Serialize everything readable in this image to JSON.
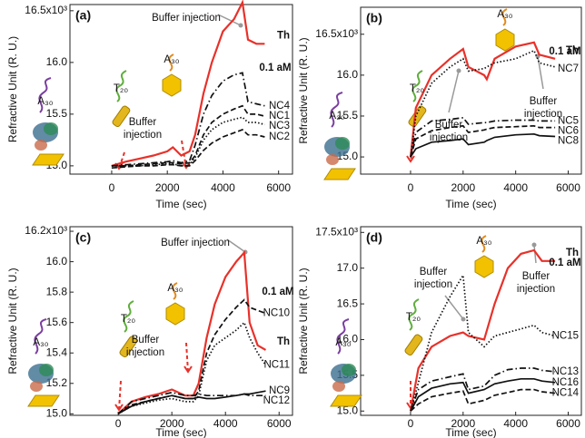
{
  "chart_data": [
    {
      "type": "line",
      "panel_label": "(a)",
      "x_label": "Time (sec)",
      "y_label": "Refractive Unit (R. U.)",
      "xlim": [
        -1500,
        6500
      ],
      "ylim": [
        14.92,
        16.56
      ],
      "xticks": [
        0,
        2000,
        4000,
        6000
      ],
      "yticks": [
        {
          "value": 15,
          "label": "15.0"
        },
        15.5,
        {
          "value": 16,
          "label": "16.0"
        },
        {
          "value": 16.5,
          "label": "16.5x10³"
        }
      ],
      "x": [
        0,
        500,
        1000,
        1500,
        2000,
        2200,
        2500,
        2800,
        3000,
        3300,
        3600,
        4000,
        4400,
        4700,
        4900,
        5200,
        5500
      ],
      "series": [
        {
          "name": "Th",
          "color": "#e8312a",
          "style": "solid",
          "values": [
            15.0,
            15.04,
            15.07,
            15.1,
            15.14,
            15.18,
            15.1,
            15.14,
            15.3,
            15.7,
            16.0,
            16.3,
            16.42,
            16.58,
            16.22,
            16.18,
            16.18
          ]
        },
        {
          "name": "NC4",
          "color": "#111111",
          "style": "dashdot",
          "values": [
            15.0,
            15.01,
            15.02,
            15.03,
            15.04,
            15.05,
            15.03,
            15.05,
            15.2,
            15.5,
            15.68,
            15.82,
            15.88,
            15.9,
            15.62,
            15.6,
            15.58
          ]
        },
        {
          "name": "NC1",
          "color": "#111111",
          "style": "dashed",
          "values": [
            15.0,
            15.0,
            15.01,
            15.02,
            15.03,
            15.03,
            15.02,
            15.03,
            15.1,
            15.3,
            15.42,
            15.5,
            15.55,
            15.58,
            15.5,
            15.5,
            15.48
          ]
        },
        {
          "name": "NC3",
          "color": "#111111",
          "style": "dotted",
          "values": [
            15.0,
            15.0,
            15.0,
            15.01,
            15.02,
            15.02,
            15.0,
            15.01,
            15.08,
            15.25,
            15.35,
            15.42,
            15.45,
            15.47,
            15.42,
            15.42,
            15.4
          ]
        },
        {
          "name": "NC2",
          "color": "#111111",
          "style": "dashed",
          "values": [
            14.98,
            14.99,
            15.0,
            15.0,
            15.01,
            15.01,
            15.0,
            15.0,
            15.05,
            15.15,
            15.22,
            15.28,
            15.32,
            15.35,
            15.3,
            15.3,
            15.28
          ]
        }
      ],
      "annotations": [
        "Buffer injection",
        [
          "Buffer",
          "injection"
        ],
        "A₃₀",
        "T₂₀",
        "A₃₀",
        "0.1 aM"
      ]
    },
    {
      "type": "line",
      "panel_label": "(b)",
      "x_label": "Time (sec)",
      "y_label": "Refractive Unit (R. U.)",
      "xlim": [
        -1900,
        6500
      ],
      "ylim": [
        14.79,
        16.83
      ],
      "xticks": [
        0,
        2000,
        4000,
        6000
      ],
      "yticks": [
        {
          "value": 15,
          "label": "15.0"
        },
        15.5,
        {
          "value": 16,
          "label": "16.0"
        },
        {
          "value": 16.5,
          "label": "16.5x10³"
        }
      ],
      "x": [
        0,
        200,
        800,
        1500,
        2000,
        2200,
        2800,
        2900,
        3200,
        4000,
        4700,
        4900,
        5500
      ],
      "series": [
        {
          "name": "Th",
          "color": "#e8312a",
          "style": "solid",
          "values": [
            15.0,
            15.6,
            16.0,
            16.2,
            16.32,
            16.1,
            16.0,
            15.95,
            16.2,
            16.35,
            16.4,
            16.25,
            16.2
          ]
        },
        {
          "name": "NC7",
          "color": "#111111",
          "style": "dotted",
          "values": [
            15.0,
            15.5,
            15.9,
            16.1,
            16.2,
            16.05,
            16.08,
            16.1,
            16.15,
            16.2,
            16.3,
            16.15,
            16.1
          ]
        },
        {
          "name": "NC5",
          "color": "#111111",
          "style": "dashdot",
          "values": [
            15.0,
            15.3,
            15.44,
            15.46,
            15.48,
            15.4,
            15.42,
            15.42,
            15.44,
            15.45,
            15.45,
            15.44,
            15.44
          ]
        },
        {
          "name": "NC6",
          "color": "#111111",
          "style": "dashed",
          "values": [
            15.0,
            15.22,
            15.32,
            15.36,
            15.38,
            15.3,
            15.33,
            15.34,
            15.36,
            15.37,
            15.38,
            15.36,
            15.36
          ]
        },
        {
          "name": "NC8",
          "color": "#111111",
          "style": "solid",
          "values": [
            15.0,
            15.1,
            15.18,
            15.2,
            15.22,
            15.15,
            15.18,
            15.2,
            15.24,
            15.27,
            15.28,
            15.26,
            15.25
          ]
        }
      ],
      "annotations": [
        [
          "Buffer",
          "injection"
        ],
        [
          "Buffer",
          "injection"
        ],
        "A₃₀",
        "T₂₀",
        "A₃₀",
        "0.1 aM"
      ]
    },
    {
      "type": "line",
      "panel_label": "(c)",
      "x_label": "Time (sec)",
      "y_label": "Refractive Unit (R. U.)",
      "xlim": [
        -1800,
        6500
      ],
      "ylim": [
        14.99,
        16.23
      ],
      "xticks": [
        0,
        2000,
        4000,
        6000
      ],
      "yticks": [
        {
          "value": 15,
          "label": "15.0"
        },
        15.2,
        15.4,
        15.6,
        15.8,
        {
          "value": 16,
          "label": "16.0"
        },
        {
          "value": 16.2,
          "label": "16.2x10³"
        }
      ],
      "x": [
        0,
        500,
        1000,
        1500,
        2000,
        2500,
        2800,
        3000,
        3300,
        3600,
        4000,
        4400,
        4700,
        4900,
        5200,
        5500
      ],
      "series": [
        {
          "name": "Th",
          "color": "#e8312a",
          "style": "solid",
          "values": [
            15.0,
            15.08,
            15.11,
            15.13,
            15.16,
            15.12,
            15.12,
            15.2,
            15.5,
            15.72,
            15.9,
            16.0,
            16.06,
            15.6,
            15.45,
            15.42
          ]
        },
        {
          "name": "NC10",
          "color": "#111111",
          "style": "dashed",
          "values": [
            15.0,
            15.06,
            15.08,
            15.1,
            15.12,
            15.1,
            15.1,
            15.15,
            15.4,
            15.52,
            15.62,
            15.7,
            15.75,
            15.7,
            15.68,
            15.66
          ]
        },
        {
          "name": "NC11",
          "color": "#111111",
          "style": "dotted",
          "values": [
            15.0,
            15.05,
            15.07,
            15.09,
            15.1,
            15.08,
            15.08,
            15.12,
            15.35,
            15.45,
            15.5,
            15.55,
            15.6,
            15.5,
            15.4,
            15.32
          ]
        },
        {
          "name": "NC12",
          "color": "#111111",
          "style": "dashdot",
          "values": [
            15.0,
            15.08,
            15.1,
            15.12,
            15.14,
            15.12,
            15.12,
            15.13,
            15.12,
            15.12,
            15.12,
            15.12,
            15.13,
            15.12,
            15.12,
            15.12
          ]
        },
        {
          "name": "NC9",
          "color": "#111111",
          "style": "solid",
          "values": [
            15.0,
            15.05,
            15.08,
            15.1,
            15.12,
            15.1,
            15.1,
            15.11,
            15.1,
            15.1,
            15.11,
            15.12,
            15.13,
            15.13,
            15.14,
            15.15
          ]
        }
      ],
      "annotations": [
        "Buffer injection",
        [
          "Buffer",
          "injection"
        ],
        "A₃₀",
        "T₂₀",
        "A₃₀",
        "0.1 aM"
      ]
    },
    {
      "type": "line",
      "panel_label": "(d)",
      "x_label": "Time (sec)",
      "y_label": "Refractive Unit (R. U.)",
      "xlim": [
        -1900,
        6500
      ],
      "ylim": [
        14.94,
        17.58
      ],
      "xticks": [
        0,
        2000,
        4000,
        6000
      ],
      "yticks": [
        {
          "value": 15,
          "label": "15.0"
        },
        15.5,
        {
          "value": 16,
          "label": "16.0"
        },
        16.5,
        {
          "value": 17,
          "label": "17.0"
        },
        {
          "value": 17.5,
          "label": "17.5x10³"
        }
      ],
      "x": [
        0,
        300,
        800,
        1500,
        2000,
        2200,
        2800,
        3200,
        3700,
        4200,
        4700,
        5000,
        5500
      ],
      "series": [
        {
          "name": "Th",
          "color": "#e8312a",
          "style": "solid",
          "values": [
            15.0,
            15.6,
            15.9,
            16.05,
            16.1,
            16.05,
            16.0,
            16.5,
            17.0,
            17.2,
            17.25,
            17.1,
            17.1
          ]
        },
        {
          "name": "NC15",
          "color": "#111111",
          "style": "dotted",
          "values": [
            15.0,
            15.4,
            16.1,
            16.6,
            16.9,
            16.1,
            15.9,
            16.05,
            16.1,
            16.15,
            16.2,
            16.1,
            16.05
          ]
        },
        {
          "name": "NC13",
          "color": "#111111",
          "style": "dashdot",
          "values": [
            15.0,
            15.3,
            15.42,
            15.48,
            15.52,
            15.3,
            15.35,
            15.5,
            15.58,
            15.6,
            15.6,
            15.57,
            15.55
          ]
        },
        {
          "name": "NC16",
          "color": "#111111",
          "style": "solid",
          "values": [
            15.0,
            15.2,
            15.32,
            15.38,
            15.4,
            15.25,
            15.3,
            15.38,
            15.42,
            15.45,
            15.45,
            15.42,
            15.4
          ]
        },
        {
          "name": "NC14",
          "color": "#111111",
          "style": "dashed",
          "values": [
            15.0,
            15.1,
            15.2,
            15.25,
            15.28,
            15.1,
            15.15,
            15.22,
            15.26,
            15.3,
            15.3,
            15.27,
            15.25
          ]
        }
      ],
      "annotations": [
        [
          "Buffer",
          "injection"
        ],
        [
          "Buffer",
          "injection"
        ],
        "A₃₀",
        "T₂₀",
        "A₃₀",
        "0.1 aM"
      ]
    }
  ]
}
